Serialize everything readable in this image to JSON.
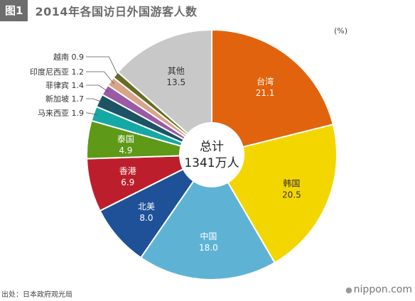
{
  "figure": {
    "badge": "图1",
    "title": "2014年各国访日外国游客人数",
    "unit": "(%)",
    "source": "出处：日本政府观光局",
    "brand": "nippon.com"
  },
  "chart_data": {
    "type": "pie",
    "title": "2014年各国访日外国游客人数",
    "unit": "%",
    "center_label": [
      "总计",
      "1341万人"
    ],
    "slices": [
      {
        "label": "台湾",
        "value": 21.1,
        "color": "#e2630d"
      },
      {
        "label": "韩国",
        "value": 20.5,
        "color": "#f3d600"
      },
      {
        "label": "中国",
        "value": 18.0,
        "color": "#5eb3d5"
      },
      {
        "label": "北美",
        "value": 8.0,
        "color": "#1e5197"
      },
      {
        "label": "香港",
        "value": 6.9,
        "color": "#bc1f2b"
      },
      {
        "label": "泰国",
        "value": 4.9,
        "color": "#5e9917"
      },
      {
        "label": "马来西亚",
        "value": 1.9,
        "color": "#15a9a5"
      },
      {
        "label": "新加坡",
        "value": 1.7,
        "color": "#1c5466"
      },
      {
        "label": "菲律宾",
        "value": 1.4,
        "color": "#9b5aa6"
      },
      {
        "label": "印度尼西亚",
        "value": 1.2,
        "color": "#d9a488"
      },
      {
        "label": "越南",
        "value": 0.9,
        "color": "#6a6c26"
      },
      {
        "label": "其他",
        "value": 13.5,
        "color": "#c8c8c8"
      }
    ]
  }
}
